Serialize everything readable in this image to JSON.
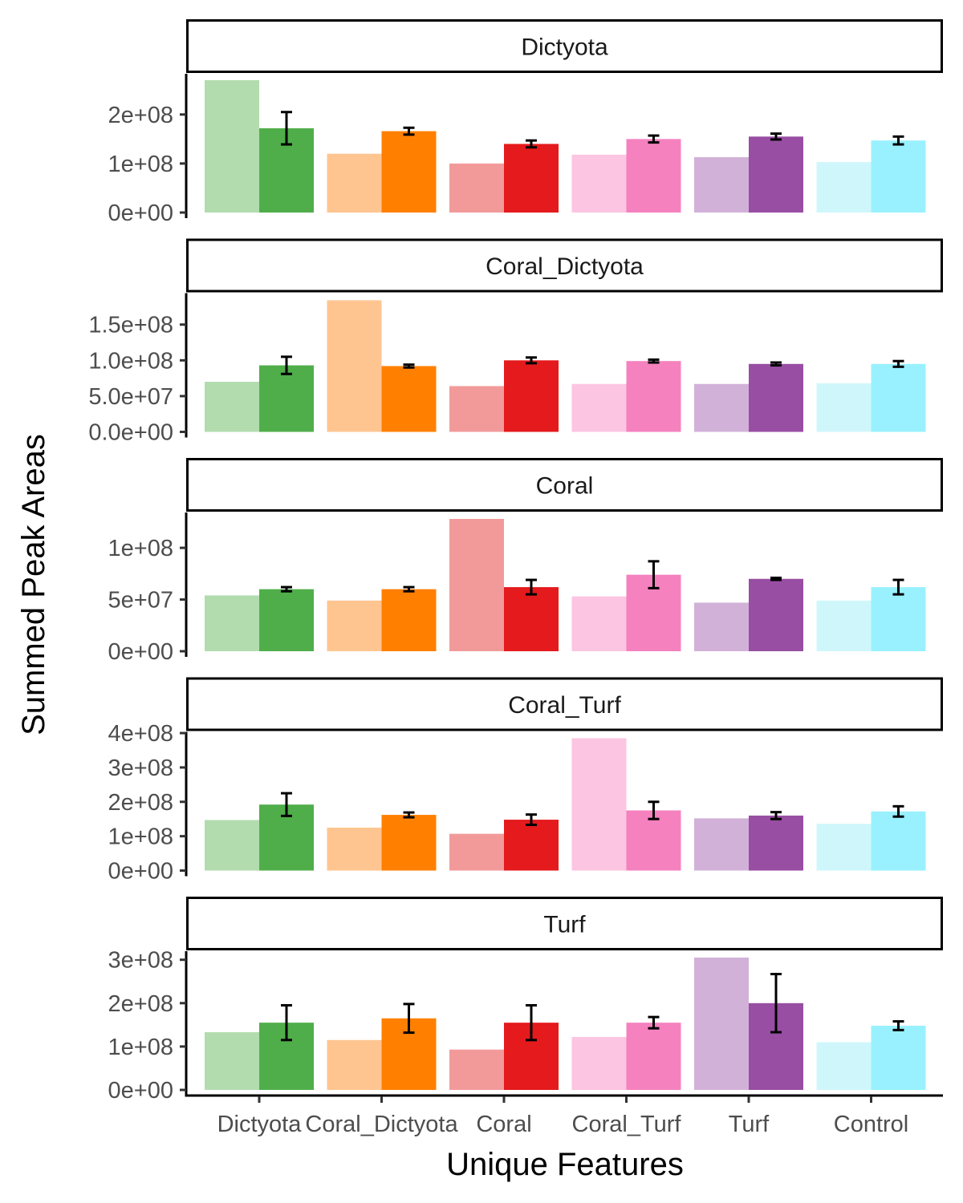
{
  "chart_data": {
    "type": "bar",
    "xlabel": "Unique Features",
    "ylabel": "Summed Peak Areas",
    "categories": [
      "Dictyota",
      "Coral_Dictyota",
      "Coral",
      "Coral_Turf",
      "Turf",
      "Control"
    ],
    "colors": {
      "light": [
        "#b2dcae",
        "#ffc591",
        "#f29a9a",
        "#fcc5e1",
        "#d2b1d8",
        "#cff7fb"
      ],
      "dark": [
        "#50ae4a",
        "#ff8000",
        "#e41a1c",
        "#f581bf",
        "#984ea3",
        "#99f1ff"
      ]
    },
    "panels": [
      {
        "strip": "Dictyota",
        "ylim": [
          0,
          270000000
        ],
        "ticks": [
          0,
          100000000,
          200000000
        ],
        "tick_labels": [
          "0e+00",
          "1e+08",
          "2e+08"
        ],
        "light": [
          270000000,
          120000000,
          100000000,
          118000000,
          113000000,
          103000000
        ],
        "dark": [
          172000000,
          166000000,
          140000000,
          150000000,
          155000000,
          147000000
        ],
        "err": [
          33000000,
          7000000,
          7000000,
          7000000,
          6000000,
          8000000
        ]
      },
      {
        "strip": "Coral_Dictyota",
        "ylim": [
          0,
          185000000
        ],
        "ticks": [
          0,
          50000000,
          100000000,
          150000000
        ],
        "tick_labels": [
          "0.0e+00",
          "5.0e+07",
          "1.0e+08",
          "1.5e+08"
        ],
        "light": [
          70000000,
          184000000,
          64000000,
          67000000,
          67000000,
          68000000
        ],
        "dark": [
          93000000,
          92000000,
          100000000,
          99000000,
          95000000,
          95000000
        ],
        "err": [
          12000000,
          2000000,
          4000000,
          2000000,
          2000000,
          4000000
        ]
      },
      {
        "strip": "Coral",
        "ylim": [
          0,
          128000000
        ],
        "ticks": [
          0,
          50000000,
          100000000
        ],
        "tick_labels": [
          "0e+00",
          "5e+07",
          "1e+08"
        ],
        "light": [
          54000000,
          49000000,
          128000000,
          53000000,
          47000000,
          49000000
        ],
        "dark": [
          60000000,
          60000000,
          62000000,
          74000000,
          70000000,
          62000000
        ],
        "err": [
          2000000,
          2000000,
          7000000,
          13000000,
          1000000,
          7000000
        ]
      },
      {
        "strip": "Coral_Turf",
        "ylim": [
          0,
          385000000
        ],
        "ticks": [
          0,
          100000000,
          200000000,
          300000000,
          400000000
        ],
        "tick_labels": [
          "0e+00",
          "1e+08",
          "2e+08",
          "3e+08",
          "4e+08"
        ],
        "light": [
          147000000,
          125000000,
          107000000,
          385000000,
          152000000,
          136000000
        ],
        "dark": [
          192000000,
          162000000,
          148000000,
          175000000,
          160000000,
          172000000
        ],
        "err": [
          33000000,
          7000000,
          15000000,
          25000000,
          10000000,
          15000000
        ]
      },
      {
        "strip": "Turf",
        "ylim": [
          0,
          305000000
        ],
        "ticks": [
          0,
          100000000,
          200000000,
          300000000
        ],
        "tick_labels": [
          "0e+00",
          "1e+08",
          "2e+08",
          "3e+08"
        ],
        "light": [
          133000000,
          115000000,
          93000000,
          122000000,
          305000000,
          110000000
        ],
        "dark": [
          155000000,
          165000000,
          155000000,
          155000000,
          200000000,
          148000000
        ],
        "err": [
          40000000,
          33000000,
          40000000,
          13000000,
          67000000,
          10000000
        ]
      }
    ]
  }
}
